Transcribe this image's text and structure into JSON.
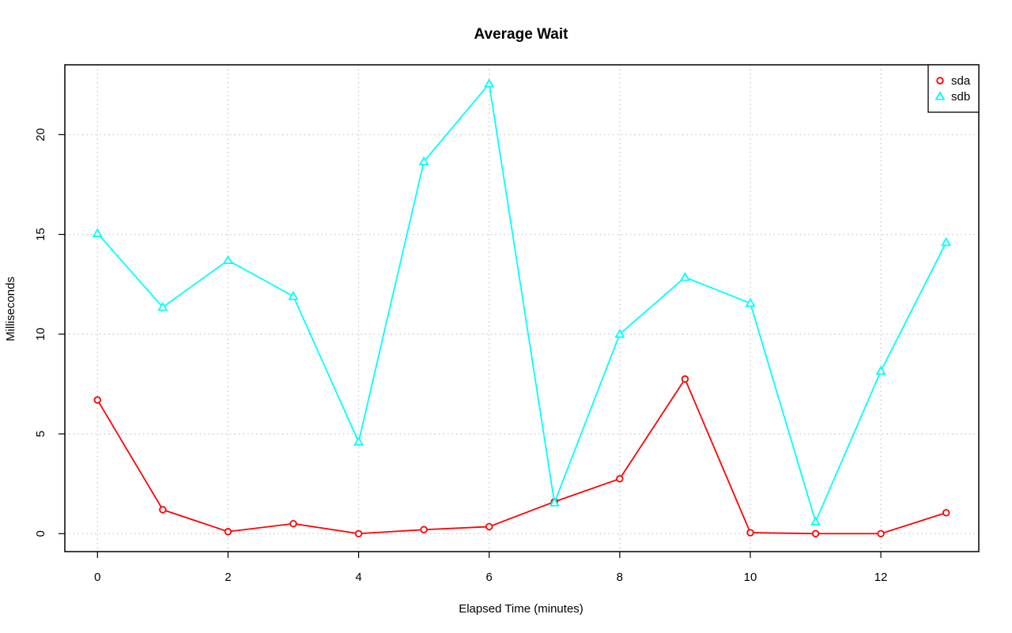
{
  "chart_data": {
    "type": "line",
    "title": "Average Wait",
    "xlabel": "Elapsed Time (minutes)",
    "ylabel": "Milliseconds",
    "xlim": [
      -0.5,
      13.5
    ],
    "ylim": [
      -0.9,
      23.5
    ],
    "xticks": [
      0,
      2,
      4,
      6,
      8,
      10,
      12
    ],
    "yticks": [
      0,
      5,
      10,
      15,
      20
    ],
    "grid": true,
    "legend_position": "top-right",
    "x": [
      0,
      1,
      2,
      3,
      4,
      5,
      6,
      7,
      8,
      9,
      10,
      11,
      12,
      13
    ],
    "series": [
      {
        "name": "sda",
        "color": "#ff0000",
        "marker": "circle",
        "values": [
          6.7,
          1.2,
          0.1,
          0.5,
          0.0,
          0.2,
          0.35,
          1.6,
          2.75,
          7.75,
          0.05,
          0.0,
          0.0,
          1.05
        ]
      },
      {
        "name": "sdb",
        "color": "#00ffff",
        "marker": "triangle",
        "values": [
          15.05,
          11.35,
          13.7,
          11.9,
          4.6,
          18.65,
          22.55,
          1.55,
          10.0,
          12.85,
          11.55,
          0.6,
          8.15,
          14.6
        ]
      }
    ]
  }
}
